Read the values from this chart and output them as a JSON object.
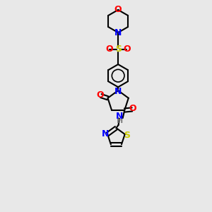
{
  "bg_color": "#e8e8e8",
  "bond_color": "#000000",
  "bond_width": 1.5,
  "atom_colors": {
    "O": "#ff0000",
    "N": "#0000ff",
    "S": "#cccc00",
    "H": "#808080",
    "C": "#000000"
  },
  "font_size": 9,
  "fig_size": [
    3.0,
    3.0
  ],
  "dpi": 100
}
